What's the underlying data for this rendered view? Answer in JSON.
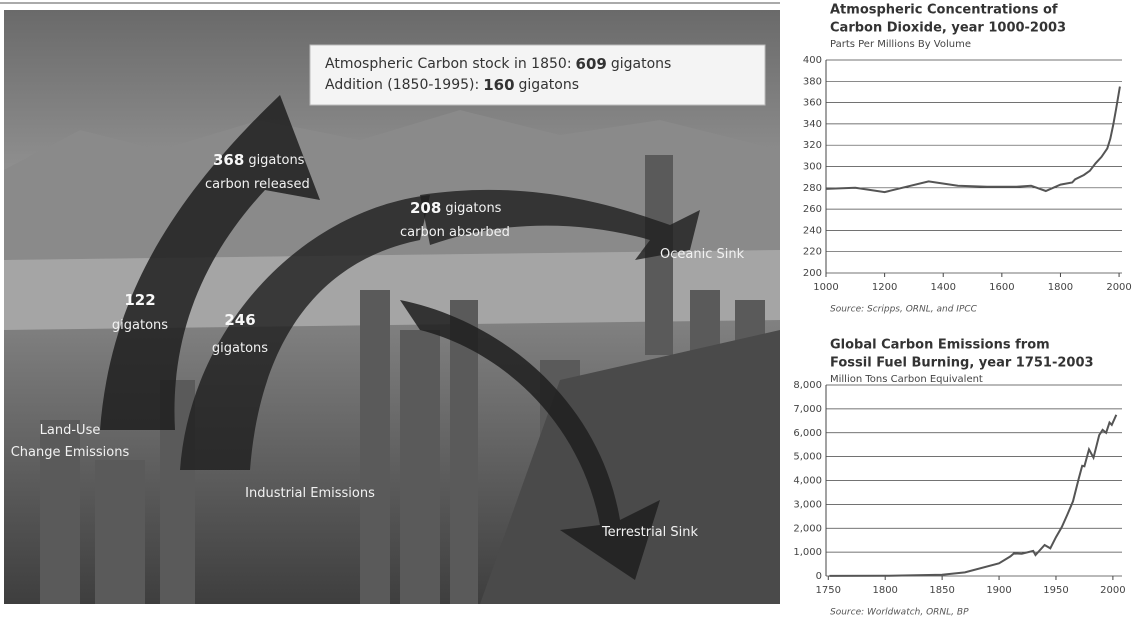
{
  "diagram": {
    "box_line1": "Atmospheric Carbon stock in 1850:",
    "box_value1": "609",
    "box_unit1": "gigatons",
    "box_line2": "Addition (1850-1995):",
    "box_value2": "160",
    "box_unit2": "gigatons",
    "released_value": "368",
    "released_unit": "gigatons",
    "released_label": "carbon released",
    "absorbed_value": "208",
    "absorbed_unit": "gigatons",
    "absorbed_label": "carbon absorbed",
    "landuse_value": "122",
    "landuse_unit": "gigatons",
    "industrial_value": "246",
    "industrial_unit": "gigatons",
    "oceanic": "Oceanic Sink",
    "landuse_line1": "Land-Use",
    "landuse_line2": "Change Emissions",
    "industrial": "Industrial Emissions",
    "terrestrial": "Terrestrial Sink"
  },
  "chart_data": [
    {
      "type": "line",
      "title": [
        "Atmospheric Concentrations of",
        "Carbon Dioxide, year 1000-2003"
      ],
      "subtitle": "Parts Per Millions By Volume",
      "source": "Source: Scripps, ORNL, and IPCC",
      "x": [
        1000,
        1100,
        1200,
        1350,
        1450,
        1550,
        1650,
        1700,
        1750,
        1800,
        1840,
        1850,
        1880,
        1900,
        1920,
        1940,
        1960,
        1970,
        1980,
        1990,
        2003
      ],
      "values": [
        279,
        280,
        276,
        286,
        282,
        281,
        281,
        282,
        277,
        283,
        285,
        288,
        292,
        296,
        303,
        309,
        317,
        326,
        339,
        354,
        375
      ],
      "color": "#555555",
      "xlim": [
        1000,
        2010
      ],
      "xticks": [
        1000,
        1200,
        1400,
        1600,
        1800,
        2000
      ],
      "ylim": [
        200,
        400
      ],
      "yticks": [
        200,
        220,
        240,
        260,
        280,
        300,
        320,
        340,
        360,
        380,
        400
      ],
      "grid": true
    },
    {
      "type": "line",
      "title": [
        "Global Carbon Emissions from",
        "Fossil Fuel Burning, year 1751-2003"
      ],
      "subtitle": "Million Tons Carbon Equivalent",
      "source": "Source: Worldwatch, ORNL, BP",
      "x": [
        1751,
        1800,
        1850,
        1870,
        1900,
        1910,
        1913,
        1920,
        1930,
        1932,
        1940,
        1945,
        1950,
        1955,
        1960,
        1965,
        1970,
        1973,
        1975,
        1979,
        1983,
        1988,
        1991,
        1994,
        1997,
        1999,
        2003
      ],
      "values": [
        3,
        8,
        54,
        150,
        534,
        819,
        943,
        932,
        1053,
        880,
        1299,
        1160,
        1630,
        2040,
        2577,
        3130,
        4075,
        4614,
        4596,
        5301,
        4955,
        5900,
        6120,
        6000,
        6430,
        6330,
        6750
      ],
      "color": "#555555",
      "xlim": [
        1748,
        2008
      ],
      "xticks": [
        1750,
        1800,
        1850,
        1900,
        1950,
        2000
      ],
      "ylim": [
        0,
        8000
      ],
      "yticks": [
        0,
        {
          "value": 1000,
          "label": "1,000"
        },
        {
          "value": 2000,
          "label": "2,000"
        },
        {
          "value": 3000,
          "label": "3,000"
        },
        {
          "value": 4000,
          "label": "4,000"
        },
        {
          "value": 5000,
          "label": "5,000"
        },
        {
          "value": 6000,
          "label": "6,000"
        },
        {
          "value": 7000,
          "label": "7,000"
        },
        {
          "value": 8000,
          "label": "8,000"
        }
      ],
      "grid": true
    }
  ]
}
